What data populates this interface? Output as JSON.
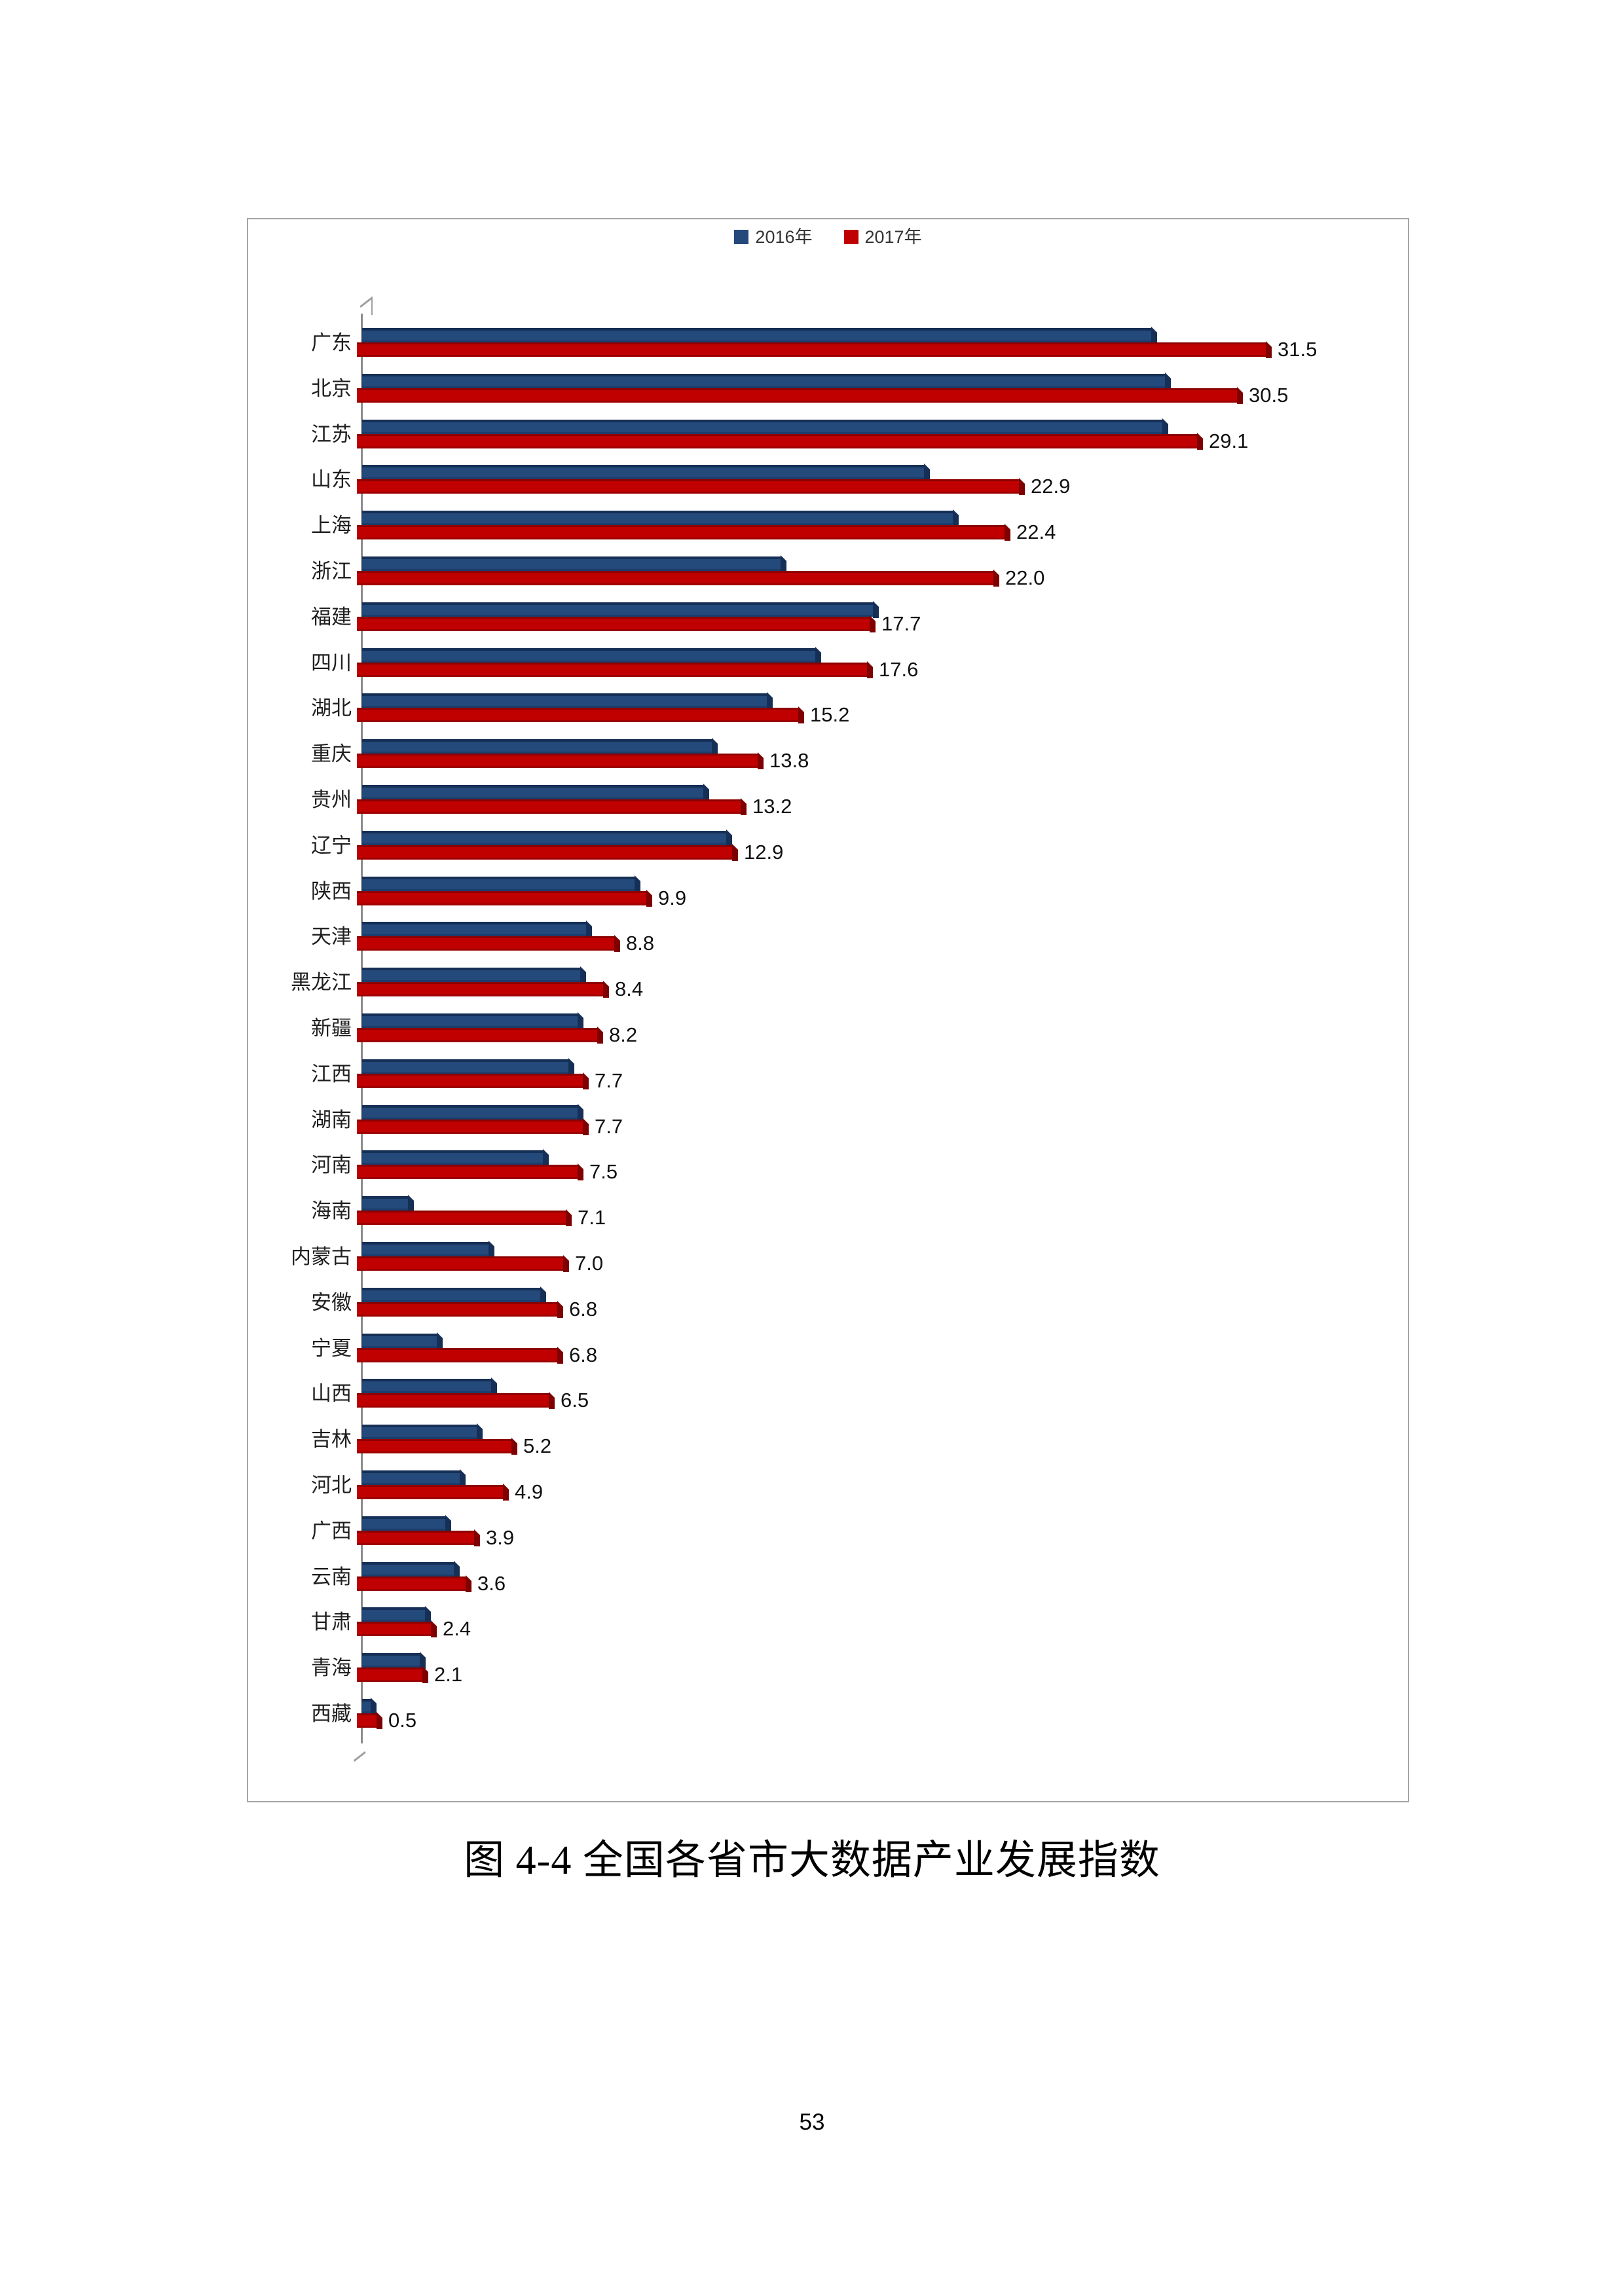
{
  "page": {
    "number": "53"
  },
  "caption": "图 4-4 全国各省市大数据产业发展指数",
  "colors": {
    "series_2016": "#24497B",
    "series_2017": "#C00000",
    "axis": "#8C8C8C",
    "frame_border": "#A6A6A6",
    "text": "#1F1F1F"
  },
  "chart_data": {
    "type": "bar",
    "orientation": "horizontal",
    "title": "",
    "legend_position": "top-center",
    "grid": false,
    "xlim": [
      0,
      35
    ],
    "categories": [
      "广东",
      "北京",
      "江苏",
      "山东",
      "上海",
      "浙江",
      "福建",
      "四川",
      "湖北",
      "重庆",
      "贵州",
      "辽宁",
      "陕西",
      "天津",
      "黑龙江",
      "新疆",
      "江西",
      "湖南",
      "河南",
      "海南",
      "内蒙古",
      "安徽",
      "宁夏",
      "山西",
      "吉林",
      "河北",
      "广西",
      "云南",
      "甘肃",
      "青海",
      "西藏"
    ],
    "series": [
      {
        "name": "2016年",
        "color": "#24497B",
        "labels_shown": false,
        "values": [
          27.5,
          28.0,
          27.9,
          19.6,
          20.6,
          14.6,
          17.8,
          15.8,
          14.1,
          12.2,
          11.9,
          12.7,
          9.5,
          7.8,
          7.6,
          7.5,
          7.2,
          7.5,
          6.3,
          1.6,
          4.4,
          6.2,
          2.6,
          4.5,
          4.0,
          3.4,
          2.9,
          3.2,
          2.2,
          2.0,
          0.3
        ]
      },
      {
        "name": "2017年",
        "color": "#C00000",
        "labels_shown": true,
        "values": [
          31.5,
          30.5,
          29.1,
          22.9,
          22.4,
          22.0,
          17.7,
          17.6,
          15.2,
          13.8,
          13.2,
          12.9,
          9.9,
          8.8,
          8.4,
          8.2,
          7.7,
          7.7,
          7.5,
          7.1,
          7.0,
          6.8,
          6.8,
          6.5,
          5.2,
          4.9,
          3.9,
          3.6,
          2.4,
          2.1,
          0.5
        ]
      }
    ],
    "value_labels": [
      "31.5",
      "30.5",
      "29.1",
      "22.9",
      "22.4",
      "22.0",
      "17.7",
      "17.6",
      "15.2",
      "13.8",
      "13.2",
      "12.9",
      "9.9",
      "8.8",
      "8.4",
      "8.2",
      "7.7",
      "7.7",
      "7.5",
      "7.1",
      "7.0",
      "6.8",
      "6.8",
      "6.5",
      "5.2",
      "4.9",
      "3.9",
      "3.6",
      "2.4",
      "2.1",
      "0.5"
    ]
  }
}
